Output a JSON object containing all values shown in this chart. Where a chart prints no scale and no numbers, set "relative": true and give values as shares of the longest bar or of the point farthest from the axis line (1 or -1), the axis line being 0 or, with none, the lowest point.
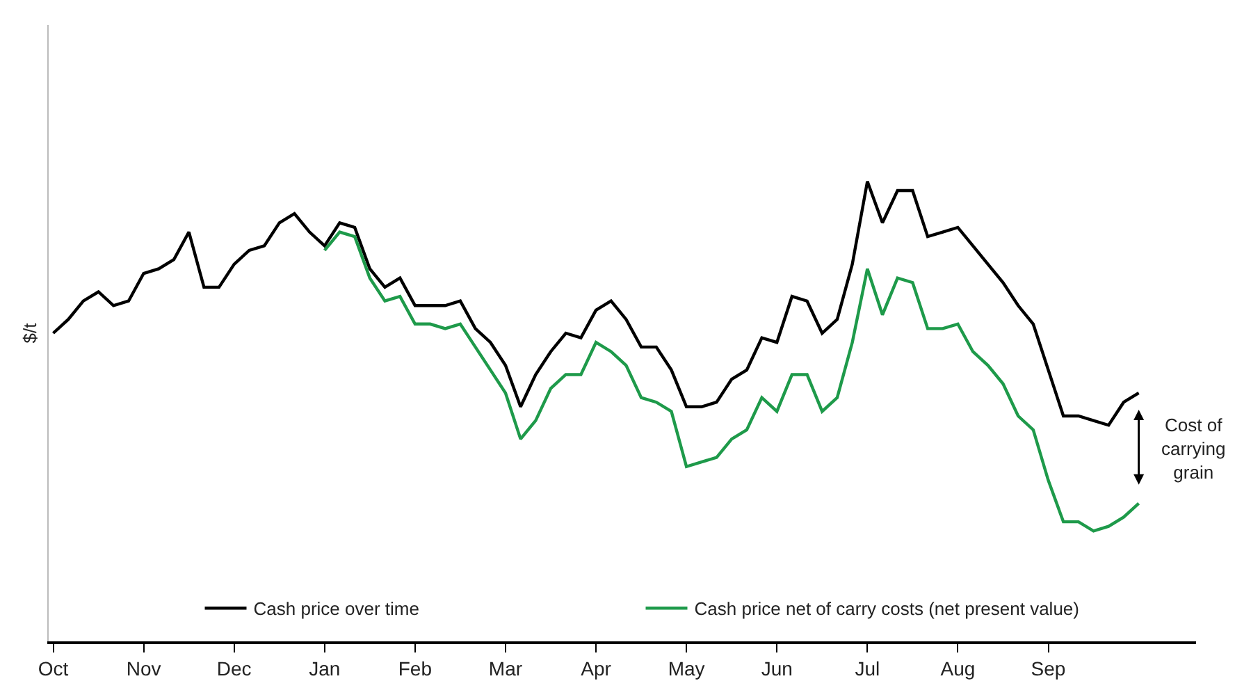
{
  "chart_data": {
    "type": "line",
    "relative": true,
    "ylabel": "$/t",
    "legend": "bottom",
    "marker": "none",
    "line_style": "solid",
    "categories": [
      "Oct",
      null,
      null,
      null,
      null,
      null,
      "Nov",
      null,
      null,
      null,
      null,
      null,
      "Dec",
      null,
      null,
      null,
      null,
      null,
      "Jan",
      null,
      null,
      null,
      null,
      null,
      "Feb",
      null,
      null,
      null,
      null,
      null,
      "Mar",
      null,
      null,
      null,
      null,
      null,
      "Apr",
      null,
      null,
      null,
      null,
      null,
      "May",
      null,
      null,
      null,
      null,
      null,
      "Jun",
      null,
      null,
      null,
      null,
      null,
      "Jul",
      null,
      null,
      null,
      null,
      null,
      "Aug",
      null,
      null,
      null,
      null,
      null,
      "Sep",
      null,
      null,
      null,
      null,
      null,
      null
    ],
    "series": [
      {
        "name": "Cash price over time",
        "color": "#000000",
        "values": [
          0.67,
          0.7,
          0.74,
          0.76,
          0.73,
          0.74,
          0.8,
          0.81,
          0.83,
          0.89,
          0.77,
          0.77,
          0.82,
          0.85,
          0.86,
          0.91,
          0.93,
          0.89,
          0.86,
          0.91,
          0.9,
          0.81,
          0.77,
          0.79,
          0.73,
          0.73,
          0.73,
          0.74,
          0.68,
          0.65,
          0.6,
          0.51,
          0.58,
          0.63,
          0.67,
          0.66,
          0.72,
          0.74,
          0.7,
          0.64,
          0.64,
          0.59,
          0.51,
          0.51,
          0.52,
          0.57,
          0.59,
          0.66,
          0.65,
          0.75,
          0.74,
          0.67,
          0.7,
          0.82,
          1.0,
          0.91,
          0.98,
          0.98,
          0.88,
          0.89,
          0.9,
          0.86,
          0.82,
          0.78,
          0.73,
          0.69,
          0.59,
          0.49,
          0.49,
          0.48,
          0.47,
          0.52,
          0.54
        ]
      },
      {
        "name": "Cash price net of carry costs (net present value)",
        "color": "#1e9a4a",
        "values": [
          null,
          null,
          null,
          null,
          null,
          null,
          null,
          null,
          null,
          null,
          null,
          null,
          null,
          null,
          null,
          null,
          null,
          null,
          0.85,
          0.89,
          0.88,
          0.79,
          0.74,
          0.75,
          0.69,
          0.69,
          0.68,
          0.69,
          0.64,
          0.59,
          0.54,
          0.44,
          0.48,
          0.55,
          0.58,
          0.58,
          0.65,
          0.63,
          0.6,
          0.53,
          0.52,
          0.5,
          0.38,
          0.39,
          0.4,
          0.44,
          0.46,
          0.53,
          0.5,
          0.58,
          0.58,
          0.5,
          0.53,
          0.65,
          0.81,
          0.71,
          0.79,
          0.78,
          0.68,
          0.68,
          0.69,
          0.63,
          0.6,
          0.56,
          0.49,
          0.46,
          0.35,
          0.26,
          0.26,
          0.24,
          0.25,
          0.27,
          0.3
        ]
      }
    ],
    "annotations": [
      "Cost of\ncarrying\ngrain"
    ]
  }
}
